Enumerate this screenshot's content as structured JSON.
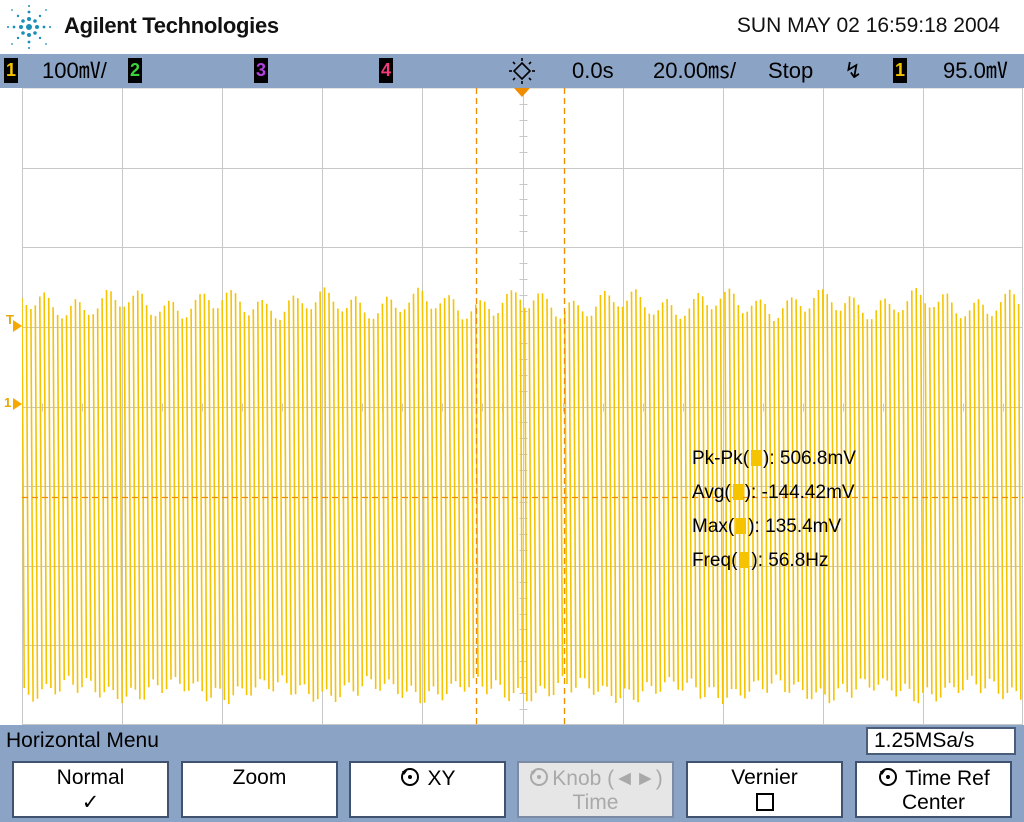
{
  "header": {
    "brand": "Agilent Technologies",
    "datetime": "SUN MAY 02 16:59:18 2004"
  },
  "statusbar": {
    "ch1": {
      "num": "1",
      "scale": "100㎷/",
      "color": "#f5c300"
    },
    "ch2": {
      "num": "2",
      "color": "#3cd23c"
    },
    "ch3": {
      "num": "3",
      "color": "#b040e0"
    },
    "ch4": {
      "num": "4",
      "color": "#f03c78"
    },
    "delay": "0.0s",
    "timebase": "20.00㎳/",
    "run_state": "Stop",
    "trigger_slope": "↯",
    "trigger_source": "1",
    "trigger_level": "95.0㎷",
    "trigger_icon": "trigger-sun-icon"
  },
  "markers": {
    "trigger_level_marker": "T",
    "channel1_ground": "1"
  },
  "measurements": [
    {
      "name": "Pk-Pk",
      "value": "506.8mV"
    },
    {
      "name": "Avg",
      "value": "-144.42mV"
    },
    {
      "name": "Max",
      "value": "135.4mV"
    },
    {
      "name": "Freq",
      "value": "56.8Hz"
    }
  ],
  "menu": {
    "title": "Horizontal Menu",
    "sample_rate": "1.25MSa/s",
    "softkeys": [
      {
        "label": "Normal",
        "sub": "✓"
      },
      {
        "label": "Zoom",
        "sub": ""
      },
      {
        "label": "XY",
        "sub": ""
      },
      {
        "label": "Knob (◄►)",
        "sub": "Time"
      },
      {
        "label": "Vernier",
        "sub": ""
      },
      {
        "label": "Time Ref",
        "sub": "Center"
      }
    ]
  },
  "colors": {
    "waveform": "#f5c300",
    "cursor": "#f08c00",
    "grid": "#c8c8c8",
    "bar": "#8ba3c4"
  }
}
